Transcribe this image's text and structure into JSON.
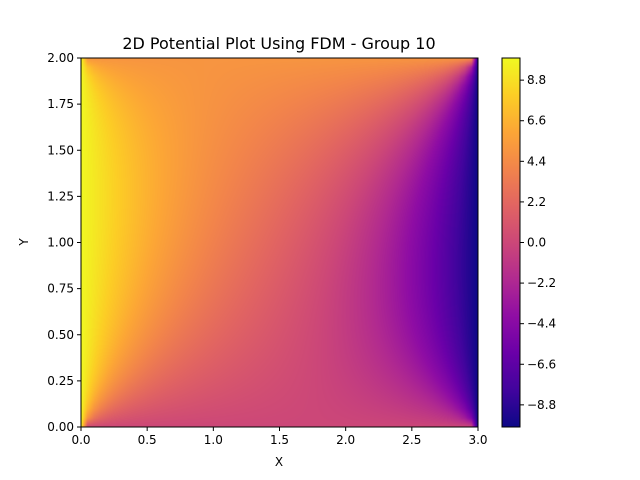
{
  "chart_data": {
    "type": "heatmap",
    "title": "2D Potential Plot Using FDM - Group 10",
    "xlabel": "X",
    "ylabel": "Y",
    "xlim": [
      0.0,
      3.0
    ],
    "ylim": [
      0.0,
      2.0
    ],
    "x_ticks": [
      "0.0",
      "0.5",
      "1.0",
      "1.5",
      "2.0",
      "2.5",
      "3.0"
    ],
    "y_ticks": [
      "0.00",
      "0.25",
      "0.50",
      "0.75",
      "1.00",
      "1.25",
      "1.50",
      "1.75",
      "2.00"
    ],
    "colormap": "plasma",
    "colorbar": {
      "range": [
        -10,
        10
      ],
      "ticks": [
        "8.8",
        "6.6",
        "4.4",
        "2.2",
        "0.0",
        "−2.2",
        "−4.4",
        "−6.6",
        "−8.8"
      ]
    },
    "boundary_conditions": {
      "left_x0": 10,
      "right_x3": -10,
      "bottom_y0": 0,
      "top_y2": 5
    },
    "grid": false,
    "legend": "none"
  }
}
